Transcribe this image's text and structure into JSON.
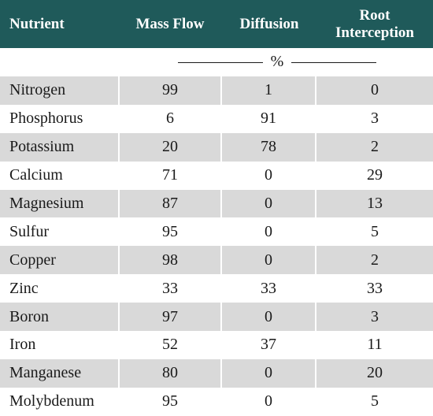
{
  "table": {
    "headers": [
      "Nutrient",
      "Mass Flow",
      "Diffusion",
      "Root\nInterception"
    ],
    "unit": "%",
    "rows": [
      {
        "nutrient": "Nitrogen",
        "mass_flow": "99",
        "diffusion": "1",
        "root_interception": "0"
      },
      {
        "nutrient": "Phosphorus",
        "mass_flow": "6",
        "diffusion": "91",
        "root_interception": "3"
      },
      {
        "nutrient": "Potassium",
        "mass_flow": "20",
        "diffusion": "78",
        "root_interception": "2"
      },
      {
        "nutrient": "Calcium",
        "mass_flow": "71",
        "diffusion": "0",
        "root_interception": "29"
      },
      {
        "nutrient": "Magnesium",
        "mass_flow": "87",
        "diffusion": "0",
        "root_interception": "13"
      },
      {
        "nutrient": "Sulfur",
        "mass_flow": "95",
        "diffusion": "0",
        "root_interception": "5"
      },
      {
        "nutrient": "Copper",
        "mass_flow": "98",
        "diffusion": "0",
        "root_interception": "2"
      },
      {
        "nutrient": "Zinc",
        "mass_flow": "33",
        "diffusion": "33",
        "root_interception": "33"
      },
      {
        "nutrient": "Boron",
        "mass_flow": "97",
        "diffusion": "0",
        "root_interception": "3"
      },
      {
        "nutrient": "Iron",
        "mass_flow": "52",
        "diffusion": "37",
        "root_interception": "11"
      },
      {
        "nutrient": "Manganese",
        "mass_flow": "80",
        "diffusion": "0",
        "root_interception": "20"
      },
      {
        "nutrient": "Molybdenum",
        "mass_flow": "95",
        "diffusion": "0",
        "root_interception": "5"
      }
    ]
  },
  "colors": {
    "header_bg": "#1f5a5a",
    "header_text": "#ffffff",
    "shaded_row": "#d9d9d9",
    "text": "#1a1a1a"
  }
}
